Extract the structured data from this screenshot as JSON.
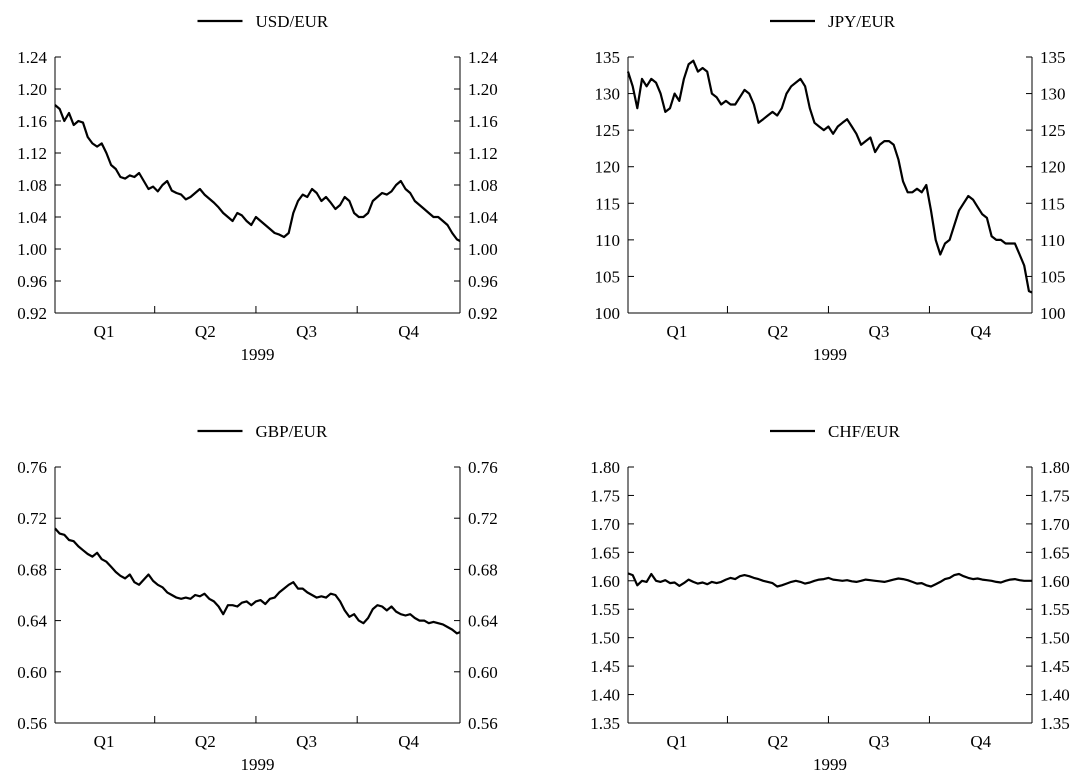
{
  "chart_data": [
    {
      "type": "line",
      "legend": "USD/EUR",
      "legend_placement": "top-center",
      "xlabel": "1999",
      "x_ticks": [
        "Q1",
        "Q2",
        "Q3",
        "Q4"
      ],
      "ylim": [
        0.92,
        1.24
      ],
      "y_ticks": [
        "0.92",
        "0.96",
        "1.00",
        "1.04",
        "1.08",
        "1.12",
        "1.16",
        "1.20",
        "1.24"
      ],
      "grid": false,
      "series": [
        {
          "name": "USD/EUR",
          "x": [
            1,
            4,
            7,
            10,
            13,
            16,
            19,
            22,
            25,
            28,
            31,
            34,
            37,
            40,
            43,
            46,
            49,
            52,
            55,
            58,
            61,
            64,
            67,
            70,
            73,
            76,
            79,
            82,
            85,
            88,
            91,
            94,
            97,
            100,
            103,
            106,
            109,
            112,
            115,
            118,
            121,
            124,
            127,
            130,
            133,
            136,
            139,
            142,
            145,
            148,
            151,
            154,
            157,
            160,
            163,
            166,
            169,
            172,
            175,
            178,
            181,
            184,
            187,
            190,
            193,
            196,
            199,
            202,
            205,
            208,
            211,
            214,
            217,
            220,
            223,
            226,
            229,
            232,
            235,
            238,
            241,
            244,
            247,
            250,
            253,
            256,
            259,
            261
          ],
          "values": [
            1.18,
            1.175,
            1.16,
            1.17,
            1.155,
            1.16,
            1.158,
            1.14,
            1.132,
            1.128,
            1.132,
            1.12,
            1.105,
            1.1,
            1.09,
            1.088,
            1.092,
            1.09,
            1.095,
            1.085,
            1.075,
            1.078,
            1.072,
            1.08,
            1.085,
            1.073,
            1.07,
            1.068,
            1.062,
            1.065,
            1.07,
            1.075,
            1.068,
            1.063,
            1.058,
            1.052,
            1.045,
            1.04,
            1.035,
            1.045,
            1.042,
            1.035,
            1.03,
            1.04,
            1.035,
            1.03,
            1.025,
            1.02,
            1.018,
            1.015,
            1.02,
            1.045,
            1.06,
            1.068,
            1.065,
            1.075,
            1.07,
            1.06,
            1.065,
            1.058,
            1.05,
            1.055,
            1.065,
            1.06,
            1.045,
            1.04,
            1.04,
            1.045,
            1.06,
            1.065,
            1.07,
            1.068,
            1.072,
            1.08,
            1.085,
            1.075,
            1.07,
            1.06,
            1.055,
            1.05,
            1.045,
            1.04,
            1.04,
            1.035,
            1.03,
            1.02,
            1.012,
            1.01
          ]
        }
      ]
    },
    {
      "type": "line",
      "legend": "JPY/EUR",
      "legend_placement": "top-center",
      "xlabel": "1999",
      "x_ticks": [
        "Q1",
        "Q2",
        "Q3",
        "Q4"
      ],
      "ylim": [
        100,
        135
      ],
      "y_ticks": [
        "100",
        "105",
        "110",
        "115",
        "120",
        "125",
        "130",
        "135"
      ],
      "grid": false,
      "series": [
        {
          "name": "JPY/EUR",
          "x": [
            1,
            4,
            7,
            10,
            13,
            16,
            19,
            22,
            25,
            28,
            31,
            34,
            37,
            40,
            43,
            46,
            49,
            52,
            55,
            58,
            61,
            64,
            67,
            70,
            73,
            76,
            79,
            82,
            85,
            88,
            91,
            94,
            97,
            100,
            103,
            106,
            109,
            112,
            115,
            118,
            121,
            124,
            127,
            130,
            133,
            136,
            139,
            142,
            145,
            148,
            151,
            154,
            157,
            160,
            163,
            166,
            169,
            172,
            175,
            178,
            181,
            184,
            187,
            190,
            193,
            196,
            199,
            202,
            205,
            208,
            211,
            214,
            217,
            220,
            223,
            226,
            229,
            232,
            235,
            238,
            241,
            244,
            247,
            250,
            253,
            256,
            259,
            261
          ],
          "values": [
            133,
            131,
            128,
            132,
            131,
            132,
            131.5,
            130,
            127.5,
            128,
            130,
            129,
            132,
            134,
            134.5,
            133,
            133.5,
            133,
            130,
            129.5,
            128.5,
            129,
            128.5,
            128.5,
            129.5,
            130.5,
            130,
            128.5,
            126,
            126.5,
            127,
            127.5,
            127,
            128,
            130,
            131,
            131.5,
            132,
            131,
            128,
            126,
            125.5,
            125,
            125.5,
            124.5,
            125.5,
            126,
            126.5,
            125.5,
            124.5,
            123,
            123.5,
            124,
            122,
            123,
            123.5,
            123.5,
            123,
            121,
            118,
            116.5,
            116.5,
            117,
            116.5,
            117.5,
            114,
            110,
            108,
            109.5,
            110,
            112,
            114,
            115,
            116,
            115.5,
            114.5,
            113.5,
            113,
            110.5,
            110,
            110,
            109.5,
            109.5,
            109.5,
            108,
            106.5,
            103,
            102.8
          ]
        }
      ]
    },
    {
      "type": "line",
      "legend": "GBP/EUR",
      "legend_placement": "top-center",
      "xlabel": "1999",
      "x_ticks": [
        "Q1",
        "Q2",
        "Q3",
        "Q4"
      ],
      "ylim": [
        0.56,
        0.76
      ],
      "y_ticks": [
        "0.56",
        "0.60",
        "0.64",
        "0.68",
        "0.72",
        "0.76"
      ],
      "grid": false,
      "series": [
        {
          "name": "GBP/EUR",
          "x": [
            1,
            4,
            7,
            10,
            13,
            16,
            19,
            22,
            25,
            28,
            31,
            34,
            37,
            40,
            43,
            46,
            49,
            52,
            55,
            58,
            61,
            64,
            67,
            70,
            73,
            76,
            79,
            82,
            85,
            88,
            91,
            94,
            97,
            100,
            103,
            106,
            109,
            112,
            115,
            118,
            121,
            124,
            127,
            130,
            133,
            136,
            139,
            142,
            145,
            148,
            151,
            154,
            157,
            160,
            163,
            166,
            169,
            172,
            175,
            178,
            181,
            184,
            187,
            190,
            193,
            196,
            199,
            202,
            205,
            208,
            211,
            214,
            217,
            220,
            223,
            226,
            229,
            232,
            235,
            238,
            241,
            244,
            247,
            250,
            253,
            256,
            259,
            261
          ],
          "values": [
            0.712,
            0.708,
            0.707,
            0.703,
            0.702,
            0.698,
            0.695,
            0.692,
            0.69,
            0.693,
            0.688,
            0.686,
            0.682,
            0.678,
            0.675,
            0.673,
            0.676,
            0.67,
            0.668,
            0.672,
            0.676,
            0.671,
            0.668,
            0.666,
            0.662,
            0.66,
            0.658,
            0.657,
            0.658,
            0.657,
            0.66,
            0.659,
            0.661,
            0.657,
            0.655,
            0.651,
            0.645,
            0.652,
            0.652,
            0.651,
            0.654,
            0.655,
            0.652,
            0.655,
            0.656,
            0.653,
            0.657,
            0.658,
            0.662,
            0.665,
            0.668,
            0.67,
            0.665,
            0.665,
            0.662,
            0.66,
            0.658,
            0.659,
            0.658,
            0.661,
            0.66,
            0.655,
            0.648,
            0.643,
            0.645,
            0.64,
            0.638,
            0.642,
            0.649,
            0.652,
            0.651,
            0.648,
            0.651,
            0.647,
            0.645,
            0.644,
            0.645,
            0.642,
            0.64,
            0.64,
            0.638,
            0.639,
            0.638,
            0.637,
            0.635,
            0.633,
            0.63,
            0.631
          ]
        }
      ]
    },
    {
      "type": "line",
      "legend": "CHF/EUR",
      "legend_placement": "top-center",
      "xlabel": "1999",
      "x_ticks": [
        "Q1",
        "Q2",
        "Q3",
        "Q4"
      ],
      "ylim": [
        1.35,
        1.8
      ],
      "y_ticks": [
        "1.35",
        "1.40",
        "1.45",
        "1.50",
        "1.55",
        "1.60",
        "1.65",
        "1.70",
        "1.75",
        "1.80"
      ],
      "grid": false,
      "series": [
        {
          "name": "CHF/EUR",
          "x": [
            1,
            4,
            7,
            10,
            13,
            16,
            19,
            22,
            25,
            28,
            31,
            34,
            37,
            40,
            43,
            46,
            49,
            52,
            55,
            58,
            61,
            64,
            67,
            70,
            73,
            76,
            79,
            82,
            85,
            88,
            91,
            94,
            97,
            100,
            103,
            106,
            109,
            112,
            115,
            118,
            121,
            124,
            127,
            130,
            133,
            136,
            139,
            142,
            145,
            148,
            151,
            154,
            157,
            160,
            163,
            166,
            169,
            172,
            175,
            178,
            181,
            184,
            187,
            190,
            193,
            196,
            199,
            202,
            205,
            208,
            211,
            214,
            217,
            220,
            223,
            226,
            229,
            232,
            235,
            238,
            241,
            244,
            247,
            250,
            253,
            256,
            259,
            261
          ],
          "values": [
            1.613,
            1.61,
            1.592,
            1.6,
            1.598,
            1.612,
            1.6,
            1.598,
            1.601,
            1.596,
            1.597,
            1.591,
            1.596,
            1.602,
            1.598,
            1.595,
            1.597,
            1.594,
            1.598,
            1.596,
            1.598,
            1.602,
            1.605,
            1.603,
            1.608,
            1.61,
            1.608,
            1.605,
            1.603,
            1.6,
            1.598,
            1.596,
            1.59,
            1.592,
            1.595,
            1.598,
            1.6,
            1.598,
            1.595,
            1.597,
            1.6,
            1.602,
            1.603,
            1.605,
            1.602,
            1.601,
            1.6,
            1.601,
            1.599,
            1.598,
            1.6,
            1.602,
            1.601,
            1.6,
            1.599,
            1.598,
            1.6,
            1.602,
            1.604,
            1.603,
            1.601,
            1.598,
            1.595,
            1.596,
            1.592,
            1.59,
            1.594,
            1.598,
            1.603,
            1.605,
            1.61,
            1.612,
            1.608,
            1.605,
            1.603,
            1.604,
            1.602,
            1.601,
            1.6,
            1.598,
            1.597,
            1.6,
            1.602,
            1.603,
            1.601,
            1.6,
            1.6,
            1.6
          ]
        }
      ]
    }
  ]
}
